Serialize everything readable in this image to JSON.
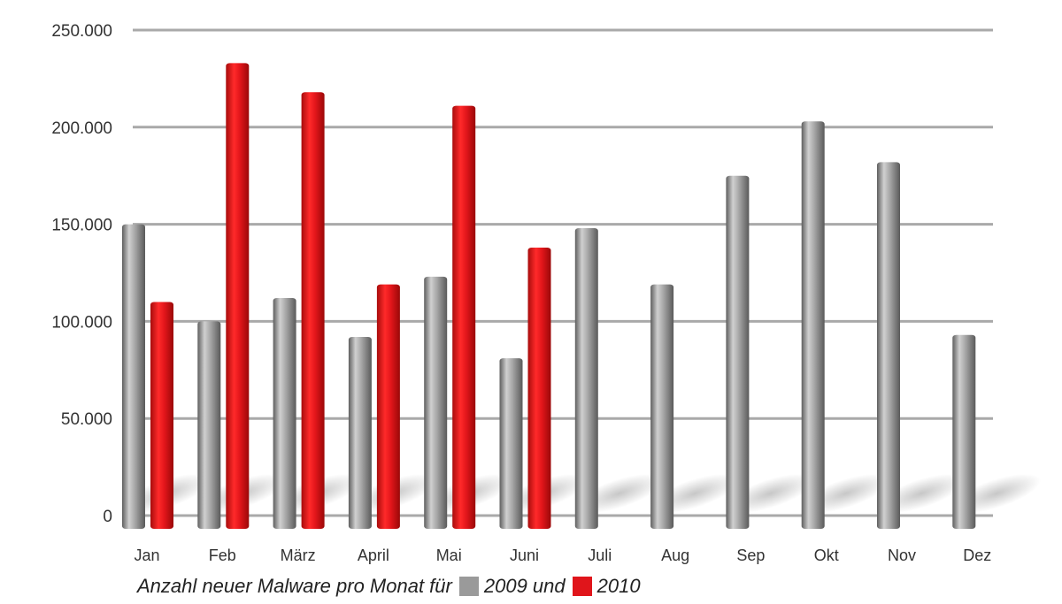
{
  "chart_data": {
    "type": "bar",
    "categories": [
      "Jan",
      "Feb",
      "März",
      "April",
      "Mai",
      "Juni",
      "Juli",
      "Aug",
      "Sep",
      "Okt",
      "Nov",
      "Dez"
    ],
    "series": [
      {
        "name": "2009",
        "color": "#9a9a9a",
        "values": [
          150000,
          100000,
          112000,
          92000,
          123000,
          81000,
          148000,
          119000,
          175000,
          203000,
          182000,
          93000
        ]
      },
      {
        "name": "2010",
        "color": "#e0151b",
        "values": [
          110000,
          233000,
          218000,
          119000,
          211000,
          138000,
          null,
          null,
          null,
          null,
          null,
          null
        ]
      }
    ],
    "yticks": [
      "0",
      "50.000",
      "100.000",
      "150.000",
      "200.000",
      "250.000"
    ],
    "ylim": [
      0,
      250000
    ],
    "grid": true,
    "caption": {
      "prefix": "Anzahl neuer Malware pro Monat für",
      "middle": "2009 und",
      "suffix": "2010"
    }
  }
}
